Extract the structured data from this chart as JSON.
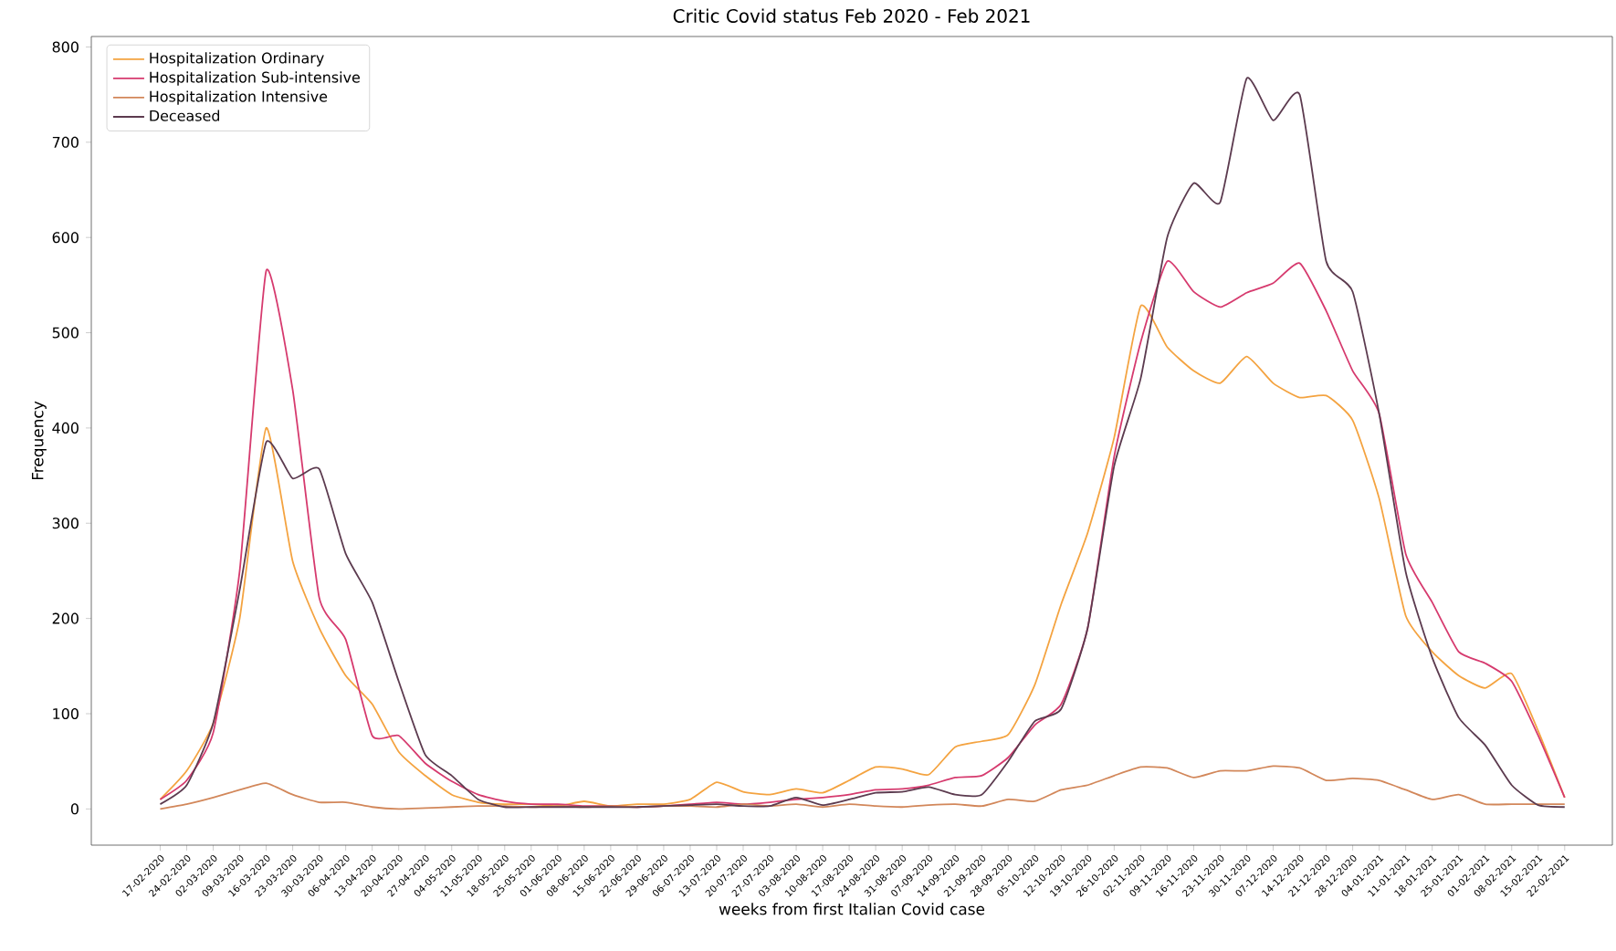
{
  "chart_data": {
    "type": "line",
    "title": "Critic Covid status Feb 2020 - Feb 2021",
    "xlabel": "weeks from first Italian Covid case",
    "ylabel": "Frequency",
    "categories": [
      "17-02-2020",
      "24-02-2020",
      "02-03-2020",
      "09-03-2020",
      "16-03-2020",
      "23-03-2020",
      "30-03-2020",
      "06-04-2020",
      "13-04-2020",
      "20-04-2020",
      "27-04-2020",
      "04-05-2020",
      "11-05-2020",
      "18-05-2020",
      "25-05-2020",
      "01-06-2020",
      "08-06-2020",
      "15-06-2020",
      "22-06-2020",
      "29-06-2020",
      "06-07-2020",
      "13-07-2020",
      "20-07-2020",
      "27-07-2020",
      "03-08-2020",
      "10-08-2020",
      "17-08-2020",
      "24-08-2020",
      "31-08-2020",
      "07-09-2020",
      "14-09-2020",
      "21-09-2020",
      "28-09-2020",
      "05-10-2020",
      "12-10-2020",
      "19-10-2020",
      "26-10-2020",
      "02-11-2020",
      "09-11-2020",
      "16-11-2020",
      "23-11-2020",
      "30-11-2020",
      "07-12-2020",
      "14-12-2020",
      "21-12-2020",
      "28-12-2020",
      "04-01-2021",
      "11-01-2021",
      "18-01-2021",
      "25-01-2021",
      "01-02-2021",
      "08-02-2021",
      "15-02-2021",
      "22-02-2021"
    ],
    "series": [
      {
        "name": "Hospitalization Ordinary",
        "color": "#f4a340",
        "values": [
          10,
          40,
          90,
          200,
          400,
          260,
          190,
          140,
          110,
          60,
          35,
          15,
          7,
          5,
          5,
          3,
          8,
          3,
          5,
          5,
          10,
          28,
          18,
          15,
          21,
          17,
          30,
          44,
          42,
          36,
          65,
          71,
          78,
          130,
          215,
          290,
          390,
          528,
          485,
          460,
          447,
          475,
          447,
          432,
          434,
          408,
          326,
          203,
          165,
          140,
          127,
          142,
          82,
          12
        ]
      },
      {
        "name": "Hospitalization Sub-intensive",
        "color": "#d63a6e",
        "values": [
          10,
          30,
          80,
          250,
          565,
          440,
          222,
          178,
          77,
          77,
          48,
          29,
          15,
          8,
          5,
          5,
          3,
          3,
          2,
          3,
          5,
          7,
          5,
          7,
          10,
          12,
          15,
          20,
          21,
          25,
          33,
          35,
          54,
          88,
          110,
          190,
          370,
          490,
          575,
          543,
          527,
          542,
          552,
          573,
          523,
          460,
          415,
          268,
          217,
          165,
          153,
          134,
          77,
          12
        ]
      },
      {
        "name": "Hospitalization Intensive",
        "color": "#d2875a",
        "values": [
          0,
          5,
          12,
          20,
          27,
          15,
          7,
          7,
          2,
          0,
          1,
          2,
          3,
          3,
          2,
          3,
          2,
          3,
          2,
          3,
          3,
          2,
          5,
          3,
          5,
          2,
          5,
          3,
          2,
          4,
          5,
          3,
          10,
          8,
          20,
          25,
          35,
          44,
          43,
          33,
          40,
          40,
          45,
          43,
          30,
          32,
          30,
          20,
          10,
          15,
          5,
          5,
          5,
          5
        ]
      },
      {
        "name": "Deceased",
        "color": "#5c3b4f",
        "values": [
          5,
          25,
          90,
          230,
          385,
          347,
          357,
          268,
          217,
          134,
          57,
          35,
          10,
          2,
          2,
          2,
          2,
          2,
          2,
          3,
          4,
          5,
          3,
          3,
          12,
          4,
          10,
          17,
          18,
          23,
          15,
          15,
          50,
          92,
          105,
          190,
          360,
          452,
          600,
          657,
          637,
          767,
          723,
          750,
          575,
          543,
          415,
          249,
          159,
          96,
          67,
          25,
          4,
          2
        ]
      }
    ],
    "ylim": [
      -38,
      811
    ],
    "yticks": [
      0,
      100,
      200,
      300,
      400,
      500,
      600,
      700,
      800
    ],
    "legend": "top left",
    "grid": false,
    "line_style": "solid",
    "marker": "none"
  }
}
